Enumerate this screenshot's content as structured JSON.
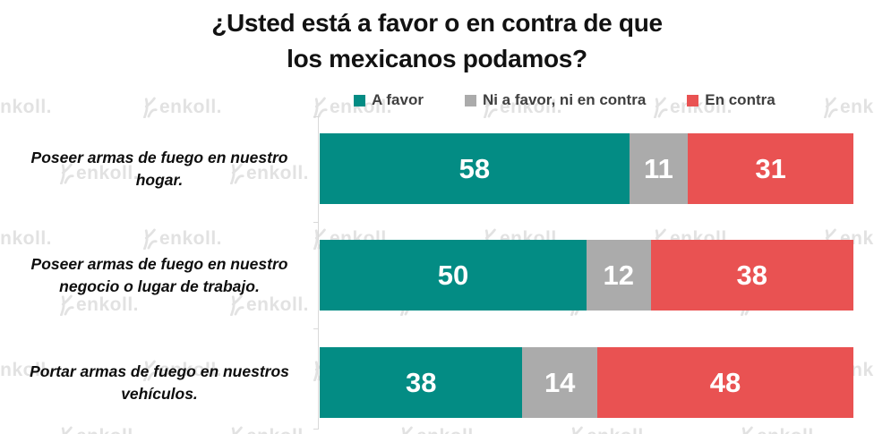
{
  "title": {
    "line1": "¿Usted está a favor o en contra de que",
    "line2": "los mexicanos podamos?"
  },
  "watermark": {
    "text": "enkoll."
  },
  "colors": {
    "a_favor": "#038C84",
    "neutral": "#ABABAB",
    "en_contra": "#E95252",
    "title_text": "#121212",
    "legend_text": "#3F3F3F",
    "value_text": "#FFFFFF",
    "axis": "#D9D9D9",
    "watermark": "#E2E2E2"
  },
  "chart_data": {
    "type": "bar",
    "orientation": "horizontal",
    "stacked": true,
    "title": "¿Usted está a favor o en contra de que los mexicanos podamos?",
    "categories": [
      "Poseer armas de fuego en nuestro hogar.",
      "Poseer armas de fuego en nuestro negocio o lugar de trabajo.",
      "Portar armas de fuego en nuestros vehículos."
    ],
    "series": [
      {
        "name": "A favor",
        "color": "#038C84",
        "values": [
          58,
          50,
          38
        ]
      },
      {
        "name": "Ni a favor, ni en contra",
        "color": "#ABABAB",
        "values": [
          11,
          12,
          14
        ]
      },
      {
        "name": "En contra",
        "color": "#E95252",
        "values": [
          31,
          38,
          48
        ]
      }
    ],
    "xlim": [
      0,
      100
    ],
    "value_labels": "inside, white bold",
    "legend_position": "top",
    "grid": false
  }
}
